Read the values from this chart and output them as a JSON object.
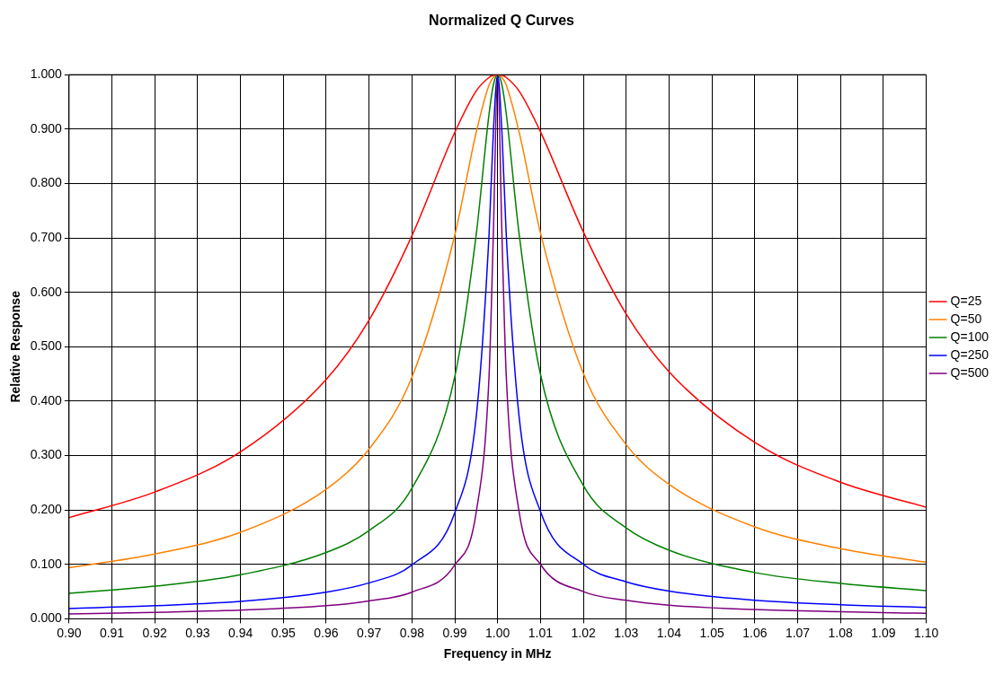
{
  "chart_data": {
    "type": "line",
    "title": "Normalized Q Curves",
    "xlabel": "Frequency in MHz",
    "ylabel": "Relative Response",
    "x": [
      0.9,
      0.92,
      0.94,
      0.96,
      0.97,
      0.98,
      0.99,
      0.995,
      0.998,
      0.999,
      1.0,
      1.001,
      1.002,
      1.005,
      1.01,
      1.02,
      1.03,
      1.04,
      1.06,
      1.08,
      1.1
    ],
    "series": [
      {
        "name": "Q=25",
        "color": "#ff0000",
        "values": [
          0.186,
          0.233,
          0.307,
          0.44,
          0.549,
          0.704,
          0.894,
          0.97,
          0.995,
          0.999,
          1.0,
          0.999,
          0.995,
          0.97,
          0.895,
          0.711,
          0.56,
          0.454,
          0.324,
          0.251,
          0.205
        ]
      },
      {
        "name": "Q=50",
        "color": "#ff8000",
        "values": [
          0.094,
          0.119,
          0.159,
          0.238,
          0.312,
          0.444,
          0.705,
          0.894,
          0.981,
          0.995,
          1.0,
          0.995,
          0.981,
          0.895,
          0.709,
          0.451,
          0.32,
          0.247,
          0.169,
          0.129,
          0.104
        ]
      },
      {
        "name": "Q=100",
        "color": "#008000",
        "values": [
          0.047,
          0.06,
          0.081,
          0.122,
          0.162,
          0.24,
          0.445,
          0.706,
          0.928,
          0.981,
          1.0,
          0.981,
          0.929,
          0.708,
          0.449,
          0.245,
          0.167,
          0.126,
          0.085,
          0.065,
          0.052
        ]
      },
      {
        "name": "Q=250",
        "color": "#0000ff",
        "values": [
          0.019,
          0.024,
          0.032,
          0.049,
          0.066,
          0.099,
          0.195,
          0.371,
          0.707,
          0.894,
          1.0,
          0.894,
          0.707,
          0.372,
          0.197,
          0.1,
          0.068,
          0.051,
          0.034,
          0.026,
          0.021
        ]
      },
      {
        "name": "Q=500",
        "color": "#800080",
        "values": [
          0.009,
          0.012,
          0.016,
          0.024,
          0.033,
          0.049,
          0.099,
          0.196,
          0.447,
          0.707,
          1.0,
          0.707,
          0.448,
          0.197,
          0.1,
          0.05,
          0.034,
          0.025,
          0.017,
          0.013,
          0.01
        ]
      }
    ],
    "xlim": [
      0.9,
      1.1
    ],
    "xticks": [
      {
        "value": 0.9,
        "label": "0.90"
      },
      {
        "value": 0.91,
        "label": "0.91"
      },
      {
        "value": 0.92,
        "label": "0.92"
      },
      {
        "value": 0.93,
        "label": "0.93"
      },
      {
        "value": 0.94,
        "label": "0.94"
      },
      {
        "value": 0.95,
        "label": "0.95"
      },
      {
        "value": 0.96,
        "label": "0.96"
      },
      {
        "value": 0.97,
        "label": "0.97"
      },
      {
        "value": 0.98,
        "label": "0.98"
      },
      {
        "value": 0.99,
        "label": "0.99"
      },
      {
        "value": 1.0,
        "label": "1.00"
      },
      {
        "value": 1.01,
        "label": "1.01"
      },
      {
        "value": 1.02,
        "label": "1.02"
      },
      {
        "value": 1.03,
        "label": "1.03"
      },
      {
        "value": 1.04,
        "label": "1.04"
      },
      {
        "value": 1.05,
        "label": "1.05"
      },
      {
        "value": 1.06,
        "label": "1.06"
      },
      {
        "value": 1.07,
        "label": "1.07"
      },
      {
        "value": 1.08,
        "label": "1.08"
      },
      {
        "value": 1.09,
        "label": "1.09"
      },
      {
        "value": 1.1,
        "label": "1.10"
      }
    ],
    "ylim": [
      0,
      1
    ],
    "yticks": [
      {
        "value": 0,
        "label": "0.000"
      },
      {
        "value": 0.1,
        "label": "0.100"
      },
      {
        "value": 0.2,
        "label": "0.200"
      },
      {
        "value": 0.3,
        "label": "0.300"
      },
      {
        "value": 0.4,
        "label": "0.400"
      },
      {
        "value": 0.5,
        "label": "0.500"
      },
      {
        "value": 0.6,
        "label": "0.600"
      },
      {
        "value": 0.7,
        "label": "0.700"
      },
      {
        "value": 0.8,
        "label": "0.800"
      },
      {
        "value": 0.9,
        "label": "0.900"
      },
      {
        "value": 1.0,
        "label": "1.000"
      }
    ],
    "grid": true,
    "legend": "right",
    "marker": "none",
    "line_style": "solid"
  }
}
